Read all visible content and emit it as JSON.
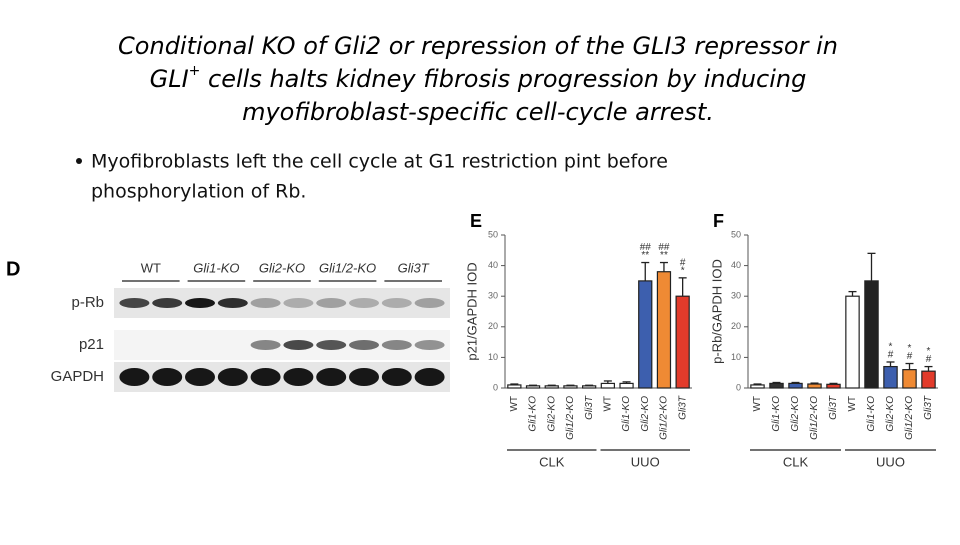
{
  "slide": {
    "title_lines": [
      "Conditional KO of Gli2 or repression of the GLI3 repressor in",
      "GLI",
      "+",
      " cells halts kidney fibrosis progression by inducing",
      "myofibroblast-specific cell-cycle arrest."
    ],
    "bullet_lines": [
      "Myofibroblasts left the cell cycle at G1 restriction pint before",
      "phosphorylation of Rb."
    ]
  },
  "blot": {
    "panel": "D",
    "lanes": [
      "WT",
      "Gli1-KO",
      "Gli2-KO",
      "Gli1/2-KO",
      "Gli3T"
    ],
    "rows": [
      "p-Rb",
      "p21",
      "GAPDH"
    ]
  },
  "charts": [
    {
      "type": "bar",
      "panel": "E",
      "y_label": "p21/GAPDH IOD",
      "ylim": [
        0,
        50
      ],
      "yticks": [
        0,
        10,
        20,
        30,
        40,
        50
      ],
      "categories": [
        "WT",
        "Gli1-KO",
        "Gli2-KO",
        "Gli1/2-KO",
        "Gli3T",
        "WT",
        "Gli1-KO",
        "Gli2-KO",
        "Gli1/2-KO",
        "Gli3T"
      ],
      "values": [
        1,
        0.7,
        0.7,
        0.7,
        0.7,
        1.5,
        1.5,
        35,
        38,
        30
      ],
      "errors": [
        0.3,
        0.2,
        0.2,
        0.2,
        0.2,
        0.8,
        0.5,
        6,
        3,
        6
      ],
      "colors": [
        "#ffffff",
        "#ffffff",
        "#ffffff",
        "#ffffff",
        "#ffffff",
        "#ffffff",
        "#ffffff",
        "#3d5fae",
        "#ef8a34",
        "#e23b2b"
      ],
      "annotations": [
        [],
        [],
        [],
        [],
        [],
        [],
        [],
        [
          "##",
          "**"
        ],
        [
          "##",
          "**"
        ],
        [
          "#",
          "*"
        ]
      ],
      "groups": [
        "CLK",
        "UUO"
      ]
    },
    {
      "type": "bar",
      "panel": "F",
      "y_label": "p-Rb/GAPDH IOD",
      "ylim": [
        0,
        50
      ],
      "yticks": [
        0,
        10,
        20,
        30,
        40,
        50
      ],
      "categories": [
        "WT",
        "Gli1-KO",
        "Gli2-KO",
        "Gli1/2-KO",
        "Gli3T",
        "WT",
        "Gli1-KO",
        "Gli2-KO",
        "Gli1/2-KO",
        "Gli3T"
      ],
      "values": [
        1,
        1.5,
        1.5,
        1.3,
        1.2,
        30,
        35,
        7,
        6,
        5.5
      ],
      "errors": [
        0.3,
        0.3,
        0.3,
        0.3,
        0.3,
        1.5,
        9,
        1.5,
        2,
        1.5
      ],
      "colors": [
        "#ffffff",
        "#333333",
        "#3d5fae",
        "#ef8a34",
        "#e23b2b",
        "#ffffff",
        "#222222",
        "#3d5fae",
        "#ef8a34",
        "#e23b2b"
      ],
      "annotations": [
        [],
        [],
        [],
        [],
        [],
        [],
        [],
        [
          "*",
          "#"
        ],
        [
          "*",
          "#"
        ],
        [
          "*",
          "#"
        ]
      ],
      "groups": [
        "CLK",
        "UUO"
      ]
    }
  ]
}
